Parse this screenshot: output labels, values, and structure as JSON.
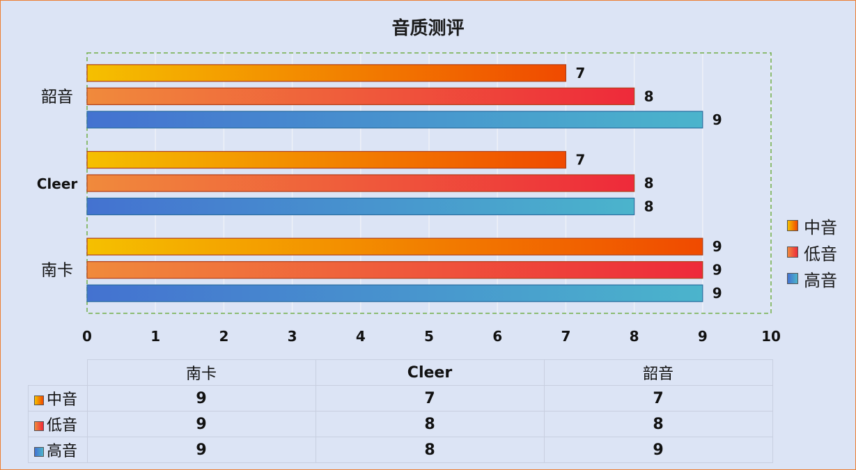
{
  "chart_data": {
    "type": "bar",
    "orientation": "horizontal",
    "title": "音质测评",
    "categories": [
      "南卡",
      "Cleer",
      "韶音"
    ],
    "series": [
      {
        "name": "中音",
        "values": [
          9,
          7,
          7
        ],
        "color_start": "#f5c000",
        "color_end": "#f04a00"
      },
      {
        "name": "低音",
        "values": [
          9,
          8,
          8
        ],
        "color_start": "#f08a3c",
        "color_end": "#ee2a3a"
      },
      {
        "name": "高音",
        "values": [
          9,
          8,
          9
        ],
        "color_start": "#4472d0",
        "color_end": "#4bb4cc"
      }
    ],
    "xlim": [
      0,
      10
    ],
    "xticks": [
      "0",
      "1",
      "2",
      "3",
      "4",
      "5",
      "6",
      "7",
      "8",
      "9",
      "10"
    ],
    "grid": true,
    "legend_position": "right",
    "data_table": true
  },
  "frame_border_color": "#ed7d31",
  "plot_border_color": "#70ad47"
}
